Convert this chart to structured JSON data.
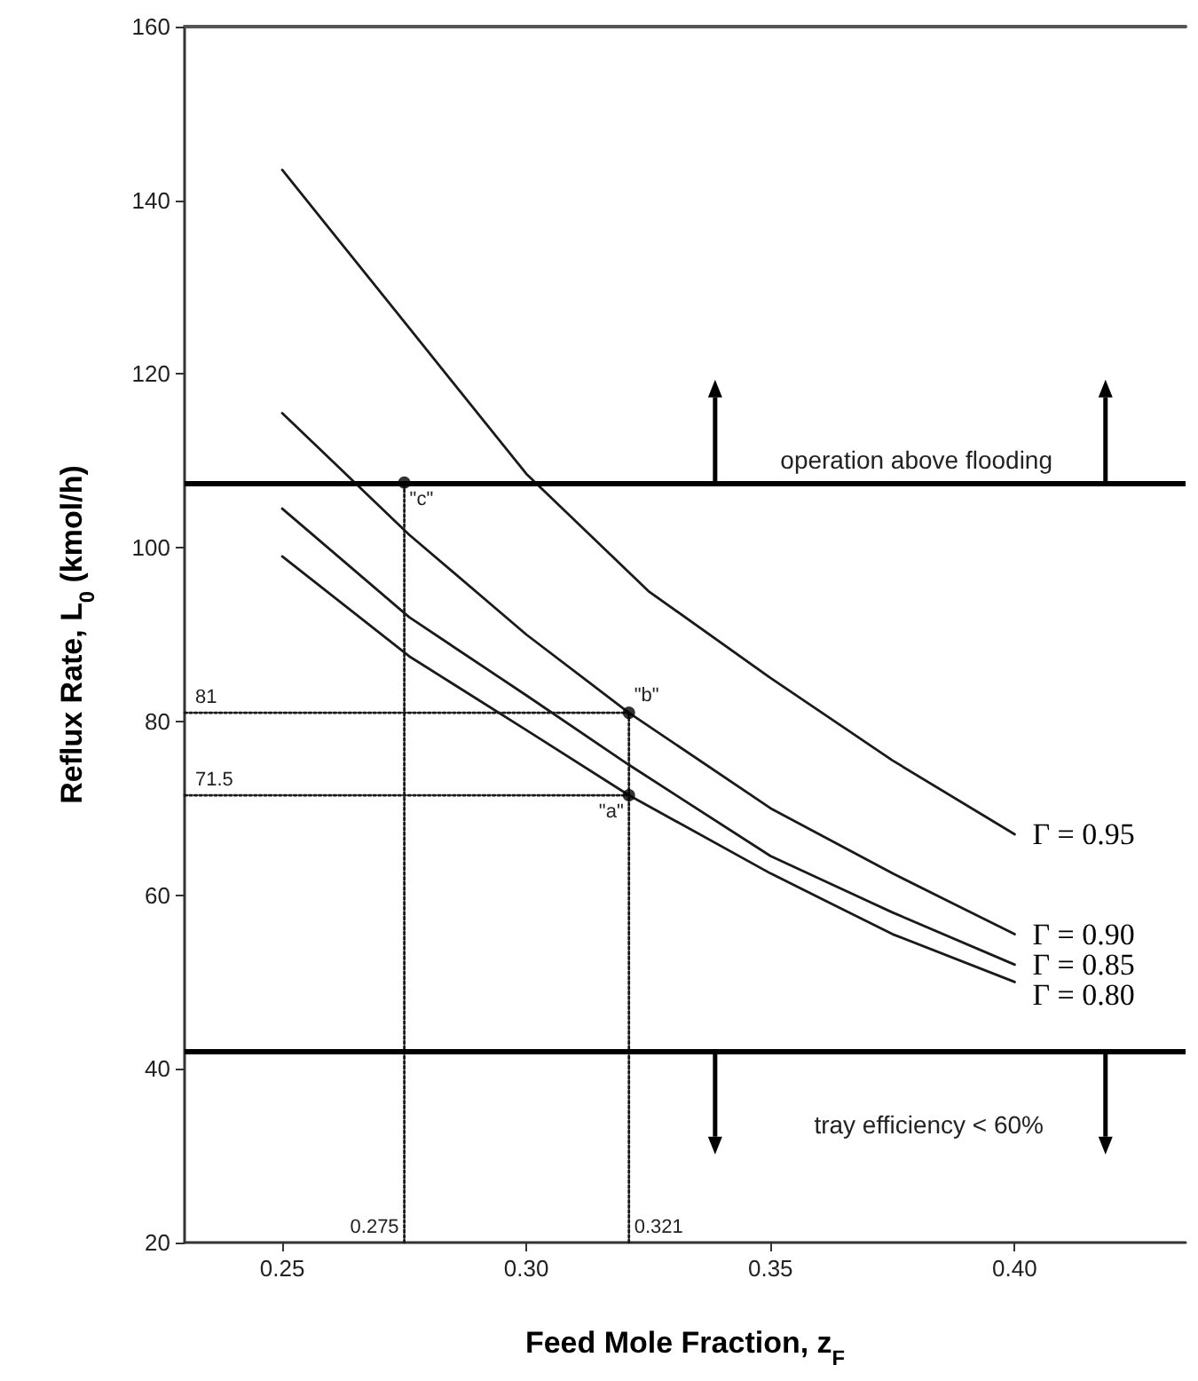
{
  "chart_data": {
    "type": "line",
    "xlabel": "Feed Mole Fraction, z$_{F}$",
    "ylabel": "Reflux Rate, L$_{0}$ (kmol/h)",
    "xlim": [
      0.23,
      0.435
    ],
    "ylim": [
      20,
      160
    ],
    "xticks": [
      0.25,
      {
        "value": 0.3,
        "label": "0.30"
      },
      0.35,
      {
        "value": 0.4,
        "label": "0.40"
      }
    ],
    "yticks": [
      20,
      40,
      60,
      80,
      100,
      120,
      140,
      160
    ],
    "grid": false,
    "legend": false,
    "line_style": "solid",
    "series": [
      {
        "name": "Γ = 0.95",
        "color": "#1a1a1a",
        "x": [
          0.25,
          0.275,
          0.3,
          0.325,
          0.35,
          0.375,
          0.4
        ],
        "values": [
          143.5,
          126,
          108.5,
          95,
          85,
          75.5,
          67
        ]
      },
      {
        "name": "Γ = 0.90",
        "color": "#1a1a1a",
        "x": [
          0.25,
          0.276,
          0.3,
          0.321,
          0.35,
          0.375,
          0.4
        ],
        "values": [
          115.5,
          101.5,
          90,
          81,
          70,
          62.5,
          55.5
        ]
      },
      {
        "name": "Γ = 0.85",
        "color": "#1a1a1a",
        "x": [
          0.25,
          0.276,
          0.3,
          0.321,
          0.35,
          0.375,
          0.4
        ],
        "values": [
          104.5,
          92,
          83,
          75,
          64.5,
          58,
          52
        ]
      },
      {
        "name": "Γ = 0.80",
        "color": "#1a1a1a",
        "x": [
          0.25,
          0.276,
          0.3,
          0.321,
          0.35,
          0.375,
          0.4
        ],
        "values": [
          99,
          87.5,
          79,
          71.5,
          62.5,
          55.5,
          50
        ]
      },
      {
        "type": "line",
        "line_style": "dotted",
        "color": "#1a1a1a",
        "x": [
          0.23,
          0.321
        ],
        "values": [
          81,
          81
        ]
      },
      {
        "type": "line",
        "line_style": "dotted",
        "color": "#1a1a1a",
        "x": [
          0.23,
          0.321
        ],
        "values": [
          71.5,
          71.5
        ]
      },
      {
        "type": "line",
        "line_style": "dotted",
        "color": "#1a1a1a",
        "x": [
          0.275,
          0.275
        ],
        "values": [
          20,
          107.5
        ]
      },
      {
        "type": "line",
        "line_style": "dotted",
        "color": "#1a1a1a",
        "x": [
          0.321,
          0.321
        ],
        "values": [
          20,
          81
        ]
      },
      {
        "type": "scatter",
        "marker": "circle",
        "color": "#000000",
        "x": [
          0.321,
          0.321,
          0.275
        ],
        "values": [
          71.5,
          81,
          107.5
        ]
      }
    ],
    "ref_lines": [
      {
        "axis": "y",
        "value": 107.5,
        "label": "operation above flooding",
        "color": "#000000"
      },
      {
        "axis": "y",
        "value": 42,
        "label": "tray efficiency < 60%",
        "color": "#000000"
      }
    ],
    "annotations": [
      {
        "text": "81",
        "x": 0.23,
        "y": 81
      },
      {
        "text": "71.5",
        "x": 0.23,
        "y": 71.5
      },
      {
        "text": "0.275",
        "x": 0.275,
        "y": 20
      },
      {
        "text": "0.321",
        "x": 0.321,
        "y": 20
      },
      {
        "text": "\"a\"",
        "x": 0.321,
        "y": 71.5
      },
      {
        "text": "\"b\"",
        "x": 0.321,
        "y": 81
      },
      {
        "text": "\"c\"",
        "x": 0.275,
        "y": 107.5
      }
    ]
  }
}
